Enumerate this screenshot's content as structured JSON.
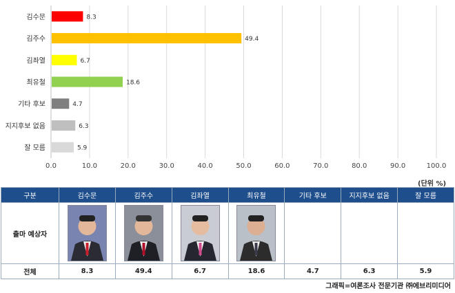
{
  "chart_data": {
    "type": "bar",
    "orientation": "horizontal",
    "categories": [
      "김수문",
      "김주수",
      "김좌열",
      "최유철",
      "기타 후보",
      "지지후보 없음",
      "잘 모름"
    ],
    "values": [
      8.3,
      49.4,
      6.7,
      18.6,
      4.7,
      6.3,
      5.9
    ],
    "colors": [
      "#ff0000",
      "#ffc000",
      "#ffff00",
      "#92d050",
      "#7f7f7f",
      "#bfbfbf",
      "#d9d9d9"
    ],
    "xlim": [
      0,
      100
    ],
    "xticks": [
      "0.0",
      "10.0",
      "20.0",
      "30.0",
      "40.0",
      "50.0",
      "60.0",
      "70.0",
      "80.0",
      "90.0",
      "100.0"
    ],
    "grid": true,
    "unit_label": "(단위 %)"
  },
  "table": {
    "header_label": "구분",
    "candidates_label": "출마 예상자",
    "total_label": "전체",
    "columns": [
      "김수문",
      "김주수",
      "김좌열",
      "최유철",
      "기타 후보",
      "지지후보 없음",
      "잘 모름"
    ],
    "totals": [
      "8.3",
      "49.4",
      "6.7",
      "18.6",
      "4.7",
      "6.3",
      "5.9"
    ],
    "has_photo": [
      true,
      true,
      true,
      true,
      false,
      false,
      false
    ],
    "header_color": "#1f4e8c"
  },
  "credit": "그래픽=여론조사 전문기관 ㈜에브리미디어"
}
